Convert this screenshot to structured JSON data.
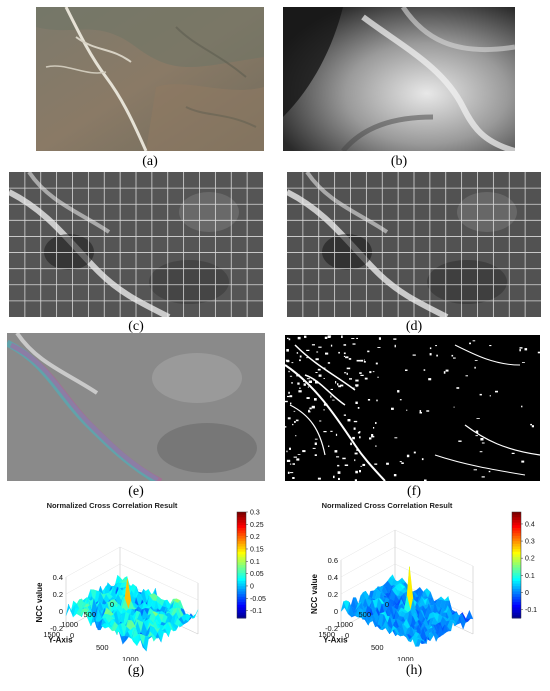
{
  "captions": {
    "a": "(a)",
    "b": "(b)",
    "c": "(c)",
    "d": "(d)",
    "e": "(e)",
    "f": "(f)",
    "g": "(g)",
    "h": "(h)"
  },
  "chart_data": [
    {
      "type": "surface3d",
      "title": "Normalized Cross Correlation Result",
      "zlabel": "NCC value",
      "ylabel": "Y-Axis",
      "xlabel": "X-Axis",
      "z_ticks": [
        "0.4",
        "0.2",
        "0",
        "-0.2"
      ],
      "y_ticks": [
        "0",
        "500",
        "1000",
        "1500"
      ],
      "x_ticks": [
        "0",
        "500",
        "1000"
      ],
      "colorbar_ticks": [
        "0.3",
        "0.25",
        "0.2",
        "0.15",
        "0.1",
        "0.05",
        "0",
        "-0.05",
        "-0.1"
      ],
      "zlim": [
        -0.2,
        0.4
      ],
      "colorbar_range": [
        -0.13,
        0.3
      ]
    },
    {
      "type": "surface3d",
      "title": "Normalized Cross Correlation Result",
      "zlabel": "NCC value",
      "ylabel": "Y-Axis",
      "xlabel": "X-Axis",
      "z_ticks": [
        "0.6",
        "0.4",
        "0.2",
        "0",
        "-0.2"
      ],
      "y_ticks": [
        "0",
        "500",
        "1000",
        "1500"
      ],
      "x_ticks": [
        "0",
        "500",
        "1000",
        "1500"
      ],
      "colorbar_ticks": [
        "0.4",
        "0.3",
        "0.2",
        "0.1",
        "0",
        "-0.1"
      ],
      "zlim": [
        -0.2,
        0.6
      ],
      "colorbar_range": [
        -0.15,
        0.47
      ]
    }
  ]
}
